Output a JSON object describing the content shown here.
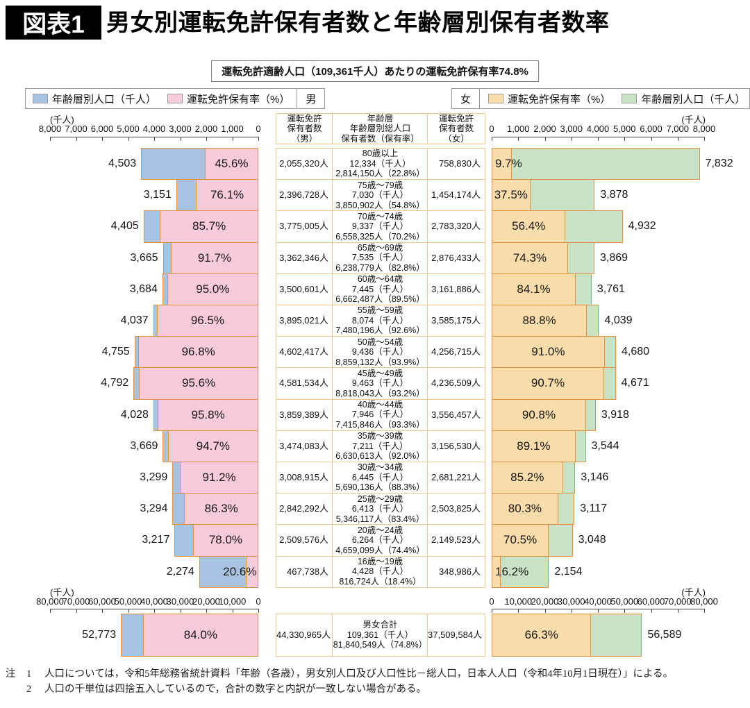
{
  "header": {
    "tag": "図表1",
    "title": "男女別運転免許保有者数と年齢層別保有者数率",
    "subtitle": "運転免許適齢人口（109,361千人）あたりの運転免許保有率74.8%"
  },
  "legend": {
    "male": {
      "gender": "男",
      "items": [
        {
          "label": "年齢層別人口（千人）",
          "color": "#a8c2e2"
        },
        {
          "label": "運転免許保有率（%）",
          "color": "#f8cada"
        }
      ]
    },
    "female": {
      "gender": "女",
      "items": [
        {
          "label": "運転免許保有率（%）",
          "color": "#fbdcab"
        },
        {
          "label": "年齢層別人口（千人）",
          "color": "#c9e2c5"
        }
      ]
    }
  },
  "chart_data": {
    "type": "bar",
    "unit_label": "(千人)",
    "axes": {
      "top_range_thousands": [
        0,
        8000
      ],
      "bottom_range_thousands": [
        0,
        80000
      ],
      "male_top_ticks": [
        "8,000",
        "7,000",
        "6,000",
        "5,000",
        "4,000",
        "3,000",
        "2,000",
        "1,000",
        "0"
      ],
      "female_top_ticks": [
        "0",
        "1,000",
        "2,000",
        "3,000",
        "4,000",
        "5,000",
        "6,000",
        "7,000",
        "8,000"
      ],
      "male_bottom_ticks": [
        "80,000",
        "70,000",
        "60,000",
        "50,000",
        "40,000",
        "30,000",
        "20,000",
        "10,000",
        "0"
      ],
      "female_bottom_ticks": [
        "0",
        "10,000",
        "20,000",
        "30,000",
        "40,000",
        "50,000",
        "60,000",
        "70,000",
        "80,000"
      ]
    },
    "table_headers": {
      "male": [
        "運転免許",
        "保有者数",
        "（男）"
      ],
      "center": [
        "年齢層",
        "年齢層別総人口",
        "保有者数（保有率）"
      ],
      "female": [
        "運転免許",
        "保有者数",
        "（女）"
      ]
    },
    "rows": [
      {
        "age": "80歳以上",
        "male": {
          "pop_k": 4503,
          "pop_label": "4,503",
          "rate_pct": 45.6,
          "rate": "45.6%",
          "holders_k": 2055.32,
          "holders_label": "2,055,320人"
        },
        "total": {
          "pop_line": "12,334（千人）",
          "holders_line": "2,814,150人（22.8%）"
        },
        "female": {
          "pop_k": 7832,
          "pop_label": "7,832",
          "rate_pct": 9.7,
          "rate": "9.7%",
          "holders_k": 758.83,
          "holders_label": "758,830人"
        }
      },
      {
        "age": "75歳～79歳",
        "male": {
          "pop_k": 3151,
          "pop_label": "3,151",
          "rate_pct": 76.1,
          "rate": "76.1%",
          "holders_k": 2396.728,
          "holders_label": "2,396,728人"
        },
        "total": {
          "pop_line": "7,030（千人）",
          "holders_line": "3,850,902人（54.8%）"
        },
        "female": {
          "pop_k": 3878,
          "pop_label": "3,878",
          "rate_pct": 37.5,
          "rate": "37.5%",
          "holders_k": 1454.174,
          "holders_label": "1,454,174人"
        }
      },
      {
        "age": "70歳～74歳",
        "male": {
          "pop_k": 4405,
          "pop_label": "4,405",
          "rate_pct": 85.7,
          "rate": "85.7%",
          "holders_k": 3775.005,
          "holders_label": "3,775,005人"
        },
        "total": {
          "pop_line": "9,337（千人）",
          "holders_line": "6,558,325人（70.2%）"
        },
        "female": {
          "pop_k": 4932,
          "pop_label": "4,932",
          "rate_pct": 56.4,
          "rate": "56.4%",
          "holders_k": 2783.32,
          "holders_label": "2,783,320人"
        }
      },
      {
        "age": "65歳～69歳",
        "male": {
          "pop_k": 3665,
          "pop_label": "3,665",
          "rate_pct": 91.7,
          "rate": "91.7%",
          "holders_k": 3362.346,
          "holders_label": "3,362,346人"
        },
        "total": {
          "pop_line": "7,535（千人）",
          "holders_line": "6,238,779人（82.8%）"
        },
        "female": {
          "pop_k": 3869,
          "pop_label": "3,869",
          "rate_pct": 74.3,
          "rate": "74.3%",
          "holders_k": 2876.433,
          "holders_label": "2,876,433人"
        }
      },
      {
        "age": "60歳～64歳",
        "male": {
          "pop_k": 3684,
          "pop_label": "3,684",
          "rate_pct": 95.0,
          "rate": "95.0%",
          "holders_k": 3500.601,
          "holders_label": "3,500,601人"
        },
        "total": {
          "pop_line": "7,445（千人）",
          "holders_line": "6,662,487人（89.5%）"
        },
        "female": {
          "pop_k": 3761,
          "pop_label": "3,761",
          "rate_pct": 84.1,
          "rate": "84.1%",
          "holders_k": 3161.886,
          "holders_label": "3,161,886人"
        }
      },
      {
        "age": "55歳～59歳",
        "male": {
          "pop_k": 4037,
          "pop_label": "4,037",
          "rate_pct": 96.5,
          "rate": "96.5%",
          "holders_k": 3895.021,
          "holders_label": "3,895,021人"
        },
        "total": {
          "pop_line": "8,074（千人）",
          "holders_line": "7,480,196人（92.6%）"
        },
        "female": {
          "pop_k": 4039,
          "pop_label": "4,039",
          "rate_pct": 88.8,
          "rate": "88.8%",
          "holders_k": 3585.175,
          "holders_label": "3,585,175人"
        }
      },
      {
        "age": "50歳～54歳",
        "male": {
          "pop_k": 4755,
          "pop_label": "4,755",
          "rate_pct": 96.8,
          "rate": "96.8%",
          "holders_k": 4602.417,
          "holders_label": "4,602,417人"
        },
        "total": {
          "pop_line": "9,436（千人）",
          "holders_line": "8,859,132人（93.9%）"
        },
        "female": {
          "pop_k": 4680,
          "pop_label": "4,680",
          "rate_pct": 91.0,
          "rate": "91.0%",
          "holders_k": 4256.715,
          "holders_label": "4,256,715人"
        }
      },
      {
        "age": "45歳～49歳",
        "male": {
          "pop_k": 4792,
          "pop_label": "4,792",
          "rate_pct": 95.6,
          "rate": "95.6%",
          "holders_k": 4581.534,
          "holders_label": "4,581,534人"
        },
        "total": {
          "pop_line": "9,463（千人）",
          "holders_line": "8,818,043人（93.2%）"
        },
        "female": {
          "pop_k": 4671,
          "pop_label": "4,671",
          "rate_pct": 90.7,
          "rate": "90.7%",
          "holders_k": 4236.509,
          "holders_label": "4,236,509人"
        }
      },
      {
        "age": "40歳～44歳",
        "male": {
          "pop_k": 4028,
          "pop_label": "4,028",
          "rate_pct": 95.8,
          "rate": "95.8%",
          "holders_k": 3859.389,
          "holders_label": "3,859,389人"
        },
        "total": {
          "pop_line": "7,946（千人）",
          "holders_line": "7,415,846人（93.3%）"
        },
        "female": {
          "pop_k": 3918,
          "pop_label": "3,918",
          "rate_pct": 90.8,
          "rate": "90.8%",
          "holders_k": 3556.457,
          "holders_label": "3,556,457人"
        }
      },
      {
        "age": "35歳～39歳",
        "male": {
          "pop_k": 3669,
          "pop_label": "3,669",
          "rate_pct": 94.7,
          "rate": "94.7%",
          "holders_k": 3474.083,
          "holders_label": "3,474,083人"
        },
        "total": {
          "pop_line": "7,211（千人）",
          "holders_line": "6,630,613人（92.0%）"
        },
        "female": {
          "pop_k": 3544,
          "pop_label": "3,544",
          "rate_pct": 89.1,
          "rate": "89.1%",
          "holders_k": 3156.53,
          "holders_label": "3,156,530人"
        }
      },
      {
        "age": "30歳～34歳",
        "male": {
          "pop_k": 3299,
          "pop_label": "3,299",
          "rate_pct": 91.2,
          "rate": "91.2%",
          "holders_k": 3008.915,
          "holders_label": "3,008,915人"
        },
        "total": {
          "pop_line": "6,445（千人）",
          "holders_line": "5,690,136人（88.3%）"
        },
        "female": {
          "pop_k": 3146,
          "pop_label": "3,146",
          "rate_pct": 85.2,
          "rate": "85.2%",
          "holders_k": 2681.221,
          "holders_label": "2,681,221人"
        }
      },
      {
        "age": "25歳～29歳",
        "male": {
          "pop_k": 3294,
          "pop_label": "3,294",
          "rate_pct": 86.3,
          "rate": "86.3%",
          "holders_k": 2842.292,
          "holders_label": "2,842,292人"
        },
        "total": {
          "pop_line": "6,413（千人）",
          "holders_line": "5,346,117人（83.4%）"
        },
        "female": {
          "pop_k": 3117,
          "pop_label": "3,117",
          "rate_pct": 80.3,
          "rate": "80.3%",
          "holders_k": 2503.825,
          "holders_label": "2,503,825人"
        }
      },
      {
        "age": "20歳～24歳",
        "male": {
          "pop_k": 3217,
          "pop_label": "3,217",
          "rate_pct": 78.0,
          "rate": "78.0%",
          "holders_k": 2509.576,
          "holders_label": "2,509,576人"
        },
        "total": {
          "pop_line": "6,264（千人）",
          "holders_line": "4,659,099人（74.4%）"
        },
        "female": {
          "pop_k": 3048,
          "pop_label": "3,048",
          "rate_pct": 70.5,
          "rate": "70.5%",
          "holders_k": 2149.523,
          "holders_label": "2,149,523人"
        }
      },
      {
        "age": "16歳～19歳",
        "male": {
          "pop_k": 2274,
          "pop_label": "2,274",
          "rate_pct": 20.6,
          "rate": "20.6%",
          "holders_k": 467.738,
          "holders_label": "467,738人"
        },
        "total": {
          "pop_line": "4,428（千人）",
          "holders_line": "816,724人（18.4%）"
        },
        "female": {
          "pop_k": 2154,
          "pop_label": "2,154",
          "rate_pct": 16.2,
          "rate": "16.2%",
          "holders_k": 348.986,
          "holders_label": "348,986人"
        }
      }
    ],
    "total_row": {
      "age": "男女合計",
      "male": {
        "pop_k": 52773,
        "pop_label": "52,773",
        "rate_pct": 84.0,
        "rate": "84.0%",
        "holders_k": 44330.965,
        "holders_label": "44,330,965人"
      },
      "total": {
        "pop_line": "109,361（千人）",
        "holders_line": "81,840,549人（74.8%）"
      },
      "female": {
        "pop_k": 56589,
        "pop_label": "56,589",
        "rate_pct": 66.3,
        "rate": "66.3%",
        "holders_k": 37509.584,
        "holders_label": "37,509,584人"
      }
    }
  },
  "notes": {
    "prefix": "注",
    "items": [
      {
        "num": "1",
        "text": "人口については，令和5年総務省統計資料「年齢（各歳），男女別人口及び人口性比－総人口，日本人人口（令和4年10月1日現在）」による。"
      },
      {
        "num": "2",
        "text": "人口の千単位は四捨五入しているので，合計の数字と内訳が一致しない場合がある。"
      }
    ]
  },
  "colors": {
    "male_population": "#a8c2e2",
    "male_rate": "#f8cada",
    "female_rate": "#fbdcab",
    "female_population": "#c9e2c5",
    "bar_border": "#e3913c",
    "table_border": "#f2c78c"
  }
}
